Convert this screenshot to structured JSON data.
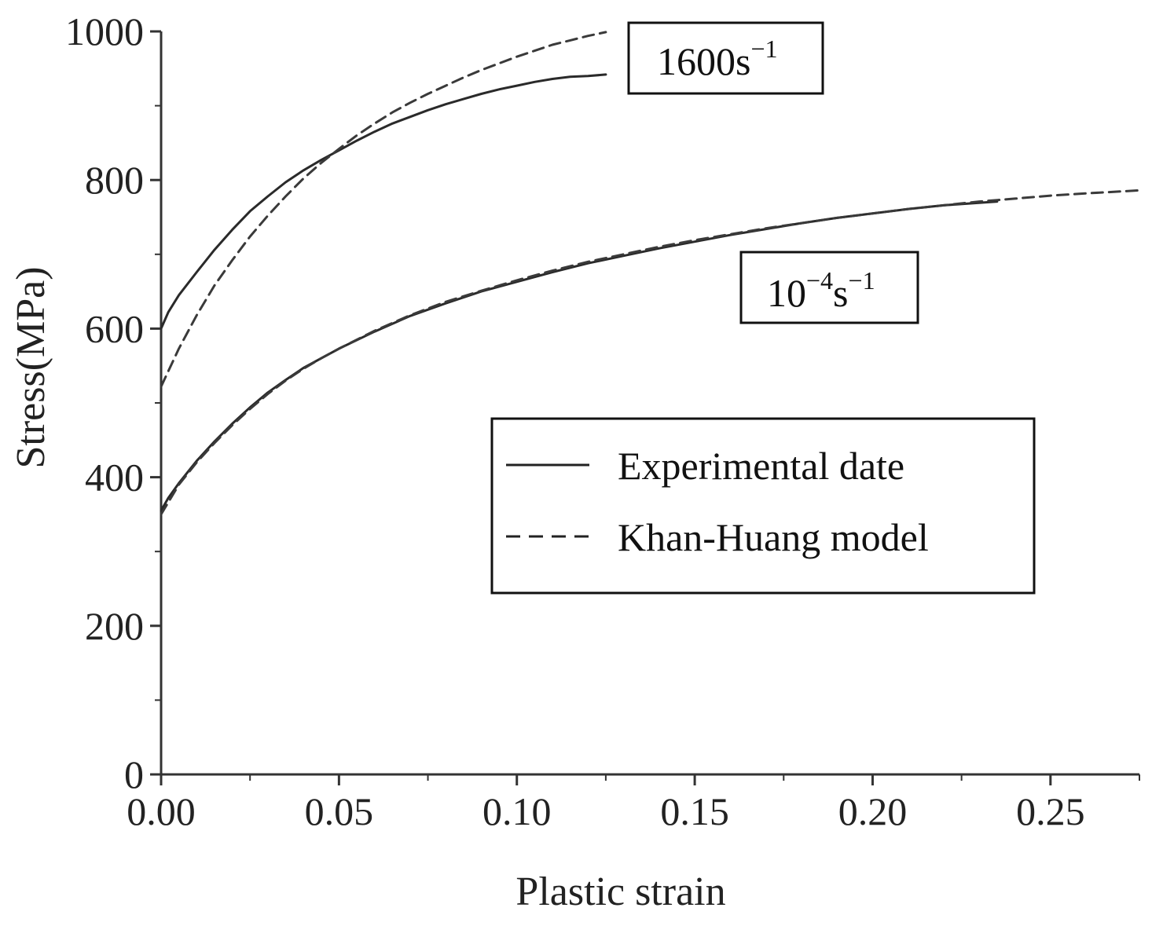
{
  "chart_data": {
    "type": "line",
    "xlabel": "Plastic strain",
    "ylabel": "Stress(MPa)",
    "xlim": [
      0,
      0.275
    ],
    "ylim": [
      0,
      1000
    ],
    "xticks": [
      0.0,
      0.05,
      0.1,
      0.15,
      0.2,
      0.25
    ],
    "xtick_labels": [
      "0.00",
      "0.05",
      "0.10",
      "0.15",
      "0.20",
      "0.25"
    ],
    "yticks": [
      0,
      200,
      400,
      600,
      800,
      1000
    ],
    "ytick_labels": [
      "0",
      "200",
      "400",
      "600",
      "800",
      "1000"
    ],
    "grid": false,
    "legend": {
      "placement": "center-right",
      "entries": [
        {
          "label": "Experimental date",
          "style": "solid"
        },
        {
          "label": "Khan-Huang model",
          "style": "dashed"
        }
      ]
    },
    "annotations": [
      {
        "base": "1600s",
        "exp": "−1",
        "near": "1600s-1 curves"
      },
      {
        "base": "10",
        "exp1": "−4",
        "mid": "s",
        "exp2": "−1",
        "near": "10-4 s-1 curves"
      }
    ],
    "series": [
      {
        "rate": "1600s-1",
        "style": "solid",
        "x": [
          0.0,
          0.002,
          0.005,
          0.01,
          0.015,
          0.02,
          0.025,
          0.03,
          0.035,
          0.04,
          0.045,
          0.05,
          0.055,
          0.06,
          0.065,
          0.07,
          0.075,
          0.08,
          0.085,
          0.09,
          0.095,
          0.1,
          0.105,
          0.11,
          0.115,
          0.12,
          0.125
        ],
        "y": [
          600,
          622,
          645,
          676,
          706,
          733,
          758,
          778,
          797,
          813,
          827,
          840,
          853,
          865,
          876,
          885,
          894,
          902,
          909,
          916,
          922,
          927,
          932,
          936,
          939,
          940,
          942
        ]
      },
      {
        "rate": "1600s-1",
        "style": "dashed",
        "x": [
          0.0,
          0.005,
          0.01,
          0.015,
          0.02,
          0.025,
          0.03,
          0.035,
          0.04,
          0.045,
          0.05,
          0.055,
          0.06,
          0.065,
          0.07,
          0.075,
          0.08,
          0.085,
          0.09,
          0.095,
          0.1,
          0.105,
          0.11,
          0.115,
          0.12,
          0.125
        ],
        "y": [
          522,
          573,
          618,
          658,
          692,
          724,
          752,
          778,
          802,
          823,
          842,
          860,
          876,
          891,
          904,
          916,
          927,
          938,
          948,
          957,
          966,
          974,
          982,
          988,
          994,
          999
        ]
      },
      {
        "rate": "10-4 s-1",
        "style": "solid",
        "x": [
          0.0,
          0.002,
          0.005,
          0.01,
          0.015,
          0.02,
          0.025,
          0.03,
          0.035,
          0.04,
          0.045,
          0.05,
          0.06,
          0.07,
          0.08,
          0.09,
          0.1,
          0.11,
          0.12,
          0.13,
          0.14,
          0.15,
          0.16,
          0.17,
          0.18,
          0.19,
          0.2,
          0.21,
          0.22,
          0.235
        ],
        "y": [
          355,
          372,
          392,
          422,
          448,
          472,
          494,
          514,
          531,
          547,
          560,
          573,
          596,
          617,
          634,
          650,
          663,
          676,
          688,
          698,
          708,
          717,
          726,
          734,
          742,
          749,
          755,
          761,
          766,
          771
        ]
      },
      {
        "rate": "10-4 s-1",
        "style": "dashed",
        "x": [
          0.0,
          0.005,
          0.01,
          0.015,
          0.02,
          0.025,
          0.03,
          0.035,
          0.04,
          0.045,
          0.05,
          0.06,
          0.07,
          0.08,
          0.09,
          0.1,
          0.11,
          0.12,
          0.13,
          0.14,
          0.15,
          0.16,
          0.17,
          0.18,
          0.19,
          0.2,
          0.21,
          0.22,
          0.23,
          0.24,
          0.25,
          0.26,
          0.275
        ],
        "y": [
          350,
          390,
          420,
          446,
          470,
          492,
          512,
          530,
          546,
          560,
          573,
          597,
          618,
          636,
          651,
          665,
          678,
          690,
          700,
          710,
          719,
          727,
          735,
          742,
          749,
          755,
          761,
          766,
          771,
          775,
          779,
          782,
          786
        ]
      }
    ]
  }
}
